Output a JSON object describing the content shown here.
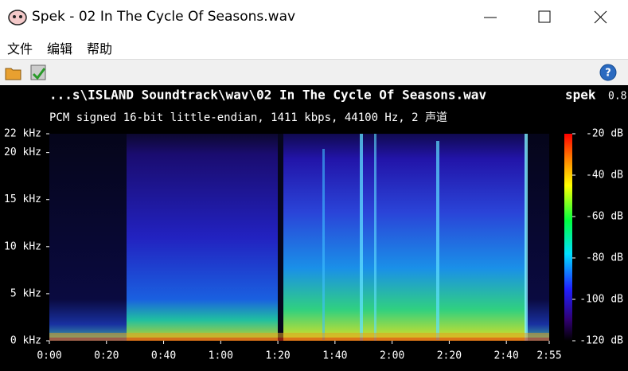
{
  "window": {
    "title": "Spek - 02 In The Cycle Of Seasons.wav"
  },
  "menu": [
    "文件",
    "编辑",
    "帮助"
  ],
  "header": {
    "file": "...s\\ISLAND Soundtrack\\wav\\02 In The Cycle Of Seasons.wav",
    "app": "spek",
    "version": "0.8",
    "info": "PCM signed 16-bit little-endian, 1411 kbps, 44100 Hz, 2 声道"
  },
  "spectrogram": {
    "ylim": [
      0,
      22
    ],
    "yticks": [
      {
        "value": 0,
        "label": "0 kHz"
      },
      {
        "value": 5,
        "label": "5 kHz"
      },
      {
        "value": 10,
        "label": "10 kHz"
      },
      {
        "value": 15,
        "label": "15 kHz"
      },
      {
        "value": 20,
        "label": "20 kHz"
      },
      {
        "value": 22,
        "label": "22 kHz"
      }
    ],
    "xlim": [
      0,
      175
    ],
    "xticks": [
      {
        "value": 0,
        "label": "0:00"
      },
      {
        "value": 20,
        "label": "0:20"
      },
      {
        "value": 40,
        "label": "0:40"
      },
      {
        "value": 60,
        "label": "1:00"
      },
      {
        "value": 80,
        "label": "1:20"
      },
      {
        "value": 100,
        "label": "1:40"
      },
      {
        "value": 120,
        "label": "2:00"
      },
      {
        "value": 140,
        "label": "2:20"
      },
      {
        "value": 160,
        "label": "2:40"
      },
      {
        "value": 175,
        "label": "2:55"
      }
    ],
    "colorbar": {
      "lim": [
        -120,
        -20
      ],
      "ticks": [
        {
          "value": -20,
          "label": "-20 dB"
        },
        {
          "value": -40,
          "label": "-40 dB"
        },
        {
          "value": -60,
          "label": "-60 dB"
        },
        {
          "value": -80,
          "label": "-80 dB"
        },
        {
          "value": -100,
          "label": "-100 dB"
        },
        {
          "value": -120,
          "label": "-120 dB"
        }
      ]
    }
  }
}
